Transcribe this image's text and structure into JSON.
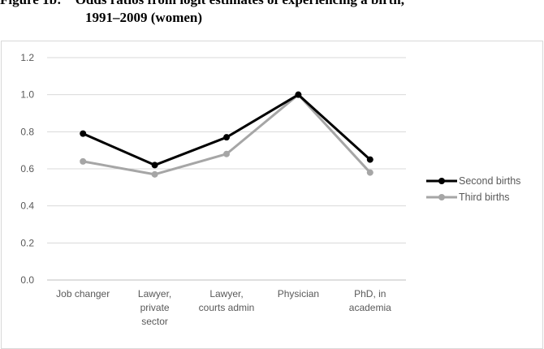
{
  "title": {
    "line1": "Figure 1b:    Odds ratios from logit estimates of experiencing a birth,",
    "line2": "1991–2009 (women)"
  },
  "chart_data": {
    "type": "line",
    "title": "Figure 1b: Odds ratios from logit estimates of experiencing a birth, 1991–2009 (women)",
    "categories": [
      [
        "Job changer"
      ],
      [
        "Lawyer,",
        "private",
        "sector"
      ],
      [
        "Lawyer,",
        "courts admin"
      ],
      [
        "Physician"
      ],
      [
        "PhD, in",
        "academia"
      ]
    ],
    "ylim": [
      0,
      1.2
    ],
    "yticks": [
      "0.0",
      "0.2",
      "0.4",
      "0.6",
      "0.8",
      "1.0",
      "1.2"
    ],
    "grid": true,
    "legend_position": "right",
    "series": [
      {
        "name": "Second births",
        "color": "#000000",
        "values": [
          0.79,
          0.62,
          0.77,
          1.0,
          0.65
        ]
      },
      {
        "name": "Third births",
        "color": "#a6a6a6",
        "values": [
          0.64,
          0.57,
          0.68,
          1.0,
          0.58
        ]
      }
    ]
  }
}
